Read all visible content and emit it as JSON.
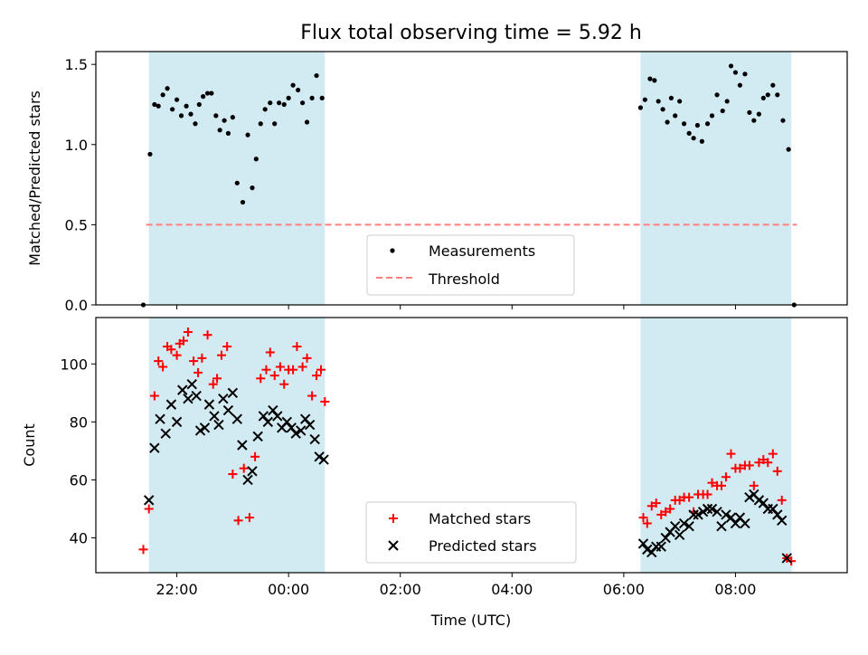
{
  "chart_data": {
    "type": "scatter",
    "title": "Flux total observing time = 5.92 h",
    "xlabel": "Time (UTC)",
    "x_unit": "hours UTC; values above 24 are times on the following day",
    "x_ticks": [
      "22:00",
      "00:00",
      "02:00",
      "04:00",
      "06:00",
      "08:00"
    ],
    "shaded_intervals": [
      [
        21.5,
        24.65
      ],
      [
        30.3,
        33.0
      ]
    ],
    "colors": {
      "shade": "#add8e6",
      "matched": "#ff0000",
      "predicted": "#000000",
      "threshold": "#ff7f7f",
      "measurements": "#000000"
    },
    "panels": [
      {
        "ylabel": "Matched/Predicted stars",
        "ylim": [
          0,
          1.58
        ],
        "yticks": [
          "0.0",
          "0.5",
          "1.0",
          "1.5"
        ],
        "legend_position": "lower center",
        "threshold": {
          "name": "Threshold",
          "value": 0.5,
          "x_range": [
            21.45,
            33.1
          ]
        },
        "measurements": {
          "name": "Measurements",
          "points": [
            [
              21.4,
              0.0
            ],
            [
              21.52,
              0.94
            ],
            [
              21.6,
              1.25
            ],
            [
              21.67,
              1.24
            ],
            [
              21.75,
              1.31
            ],
            [
              21.83,
              1.35
            ],
            [
              21.92,
              1.22
            ],
            [
              22.0,
              1.28
            ],
            [
              22.08,
              1.18
            ],
            [
              22.17,
              1.24
            ],
            [
              22.25,
              1.19
            ],
            [
              22.33,
              1.13
            ],
            [
              22.4,
              1.25
            ],
            [
              22.47,
              1.3
            ],
            [
              22.55,
              1.32
            ],
            [
              22.62,
              1.32
            ],
            [
              22.7,
              1.18
            ],
            [
              22.77,
              1.09
            ],
            [
              22.85,
              1.15
            ],
            [
              22.92,
              1.07
            ],
            [
              23.0,
              1.17
            ],
            [
              23.08,
              0.76
            ],
            [
              23.18,
              0.64
            ],
            [
              23.27,
              1.06
            ],
            [
              23.35,
              0.73
            ],
            [
              23.42,
              0.91
            ],
            [
              23.5,
              1.13
            ],
            [
              23.58,
              1.22
            ],
            [
              23.67,
              1.26
            ],
            [
              23.75,
              1.13
            ],
            [
              23.83,
              1.26
            ],
            [
              23.92,
              1.25
            ],
            [
              24.0,
              1.29
            ],
            [
              24.08,
              1.37
            ],
            [
              24.17,
              1.34
            ],
            [
              24.25,
              1.26
            ],
            [
              24.33,
              1.14
            ],
            [
              24.42,
              1.29
            ],
            [
              24.5,
              1.43
            ],
            [
              24.6,
              1.29
            ],
            [
              30.3,
              1.23
            ],
            [
              30.38,
              1.28
            ],
            [
              30.47,
              1.41
            ],
            [
              30.55,
              1.4
            ],
            [
              30.62,
              1.27
            ],
            [
              30.7,
              1.22
            ],
            [
              30.78,
              1.14
            ],
            [
              30.85,
              1.29
            ],
            [
              30.92,
              1.18
            ],
            [
              31.0,
              1.27
            ],
            [
              31.08,
              1.13
            ],
            [
              31.17,
              1.07
            ],
            [
              31.25,
              1.04
            ],
            [
              31.32,
              1.12
            ],
            [
              31.4,
              1.02
            ],
            [
              31.5,
              1.13
            ],
            [
              31.58,
              1.18
            ],
            [
              31.67,
              1.31
            ],
            [
              31.77,
              1.21
            ],
            [
              31.85,
              1.27
            ],
            [
              31.92,
              1.49
            ],
            [
              32.0,
              1.45
            ],
            [
              32.08,
              1.37
            ],
            [
              32.17,
              1.44
            ],
            [
              32.25,
              1.2
            ],
            [
              32.33,
              1.15
            ],
            [
              32.42,
              1.19
            ],
            [
              32.5,
              1.29
            ],
            [
              32.58,
              1.31
            ],
            [
              32.67,
              1.37
            ],
            [
              32.75,
              1.31
            ],
            [
              32.85,
              1.15
            ],
            [
              32.95,
              0.97
            ],
            [
              33.05,
              0.0
            ]
          ]
        }
      },
      {
        "ylabel": "Count",
        "ylim": [
          28,
          116
        ],
        "yticks": [
          "40",
          "60",
          "80",
          "100"
        ],
        "legend_position": "lower center",
        "matched": {
          "name": "Matched stars",
          "points": [
            [
              21.4,
              36
            ],
            [
              21.5,
              50
            ],
            [
              21.6,
              89
            ],
            [
              21.67,
              101
            ],
            [
              21.75,
              99
            ],
            [
              21.83,
              106
            ],
            [
              21.9,
              105
            ],
            [
              22.0,
              103
            ],
            [
              22.05,
              107
            ],
            [
              22.12,
              108
            ],
            [
              22.2,
              111
            ],
            [
              22.3,
              101
            ],
            [
              22.38,
              97
            ],
            [
              22.45,
              102
            ],
            [
              22.55,
              110
            ],
            [
              22.65,
              93
            ],
            [
              22.72,
              95
            ],
            [
              22.8,
              103
            ],
            [
              22.9,
              106
            ],
            [
              23.0,
              62
            ],
            [
              23.1,
              46
            ],
            [
              23.2,
              64
            ],
            [
              23.3,
              47
            ],
            [
              23.4,
              68
            ],
            [
              23.5,
              95
            ],
            [
              23.6,
              98
            ],
            [
              23.67,
              104
            ],
            [
              23.75,
              96
            ],
            [
              23.85,
              99
            ],
            [
              23.92,
              93
            ],
            [
              24.0,
              98
            ],
            [
              24.08,
              98
            ],
            [
              24.15,
              106
            ],
            [
              24.25,
              99
            ],
            [
              24.33,
              102
            ],
            [
              24.42,
              89
            ],
            [
              24.5,
              96
            ],
            [
              24.58,
              98
            ],
            [
              24.65,
              87
            ],
            [
              30.35,
              47
            ],
            [
              30.42,
              45
            ],
            [
              30.5,
              51
            ],
            [
              30.58,
              52
            ],
            [
              30.67,
              48
            ],
            [
              30.75,
              49
            ],
            [
              30.83,
              50
            ],
            [
              30.92,
              53
            ],
            [
              31.0,
              53
            ],
            [
              31.08,
              54
            ],
            [
              31.17,
              54
            ],
            [
              31.25,
              49
            ],
            [
              31.33,
              55
            ],
            [
              31.42,
              55
            ],
            [
              31.5,
              55
            ],
            [
              31.58,
              59
            ],
            [
              31.67,
              58
            ],
            [
              31.75,
              58
            ],
            [
              31.83,
              61
            ],
            [
              31.92,
              69
            ],
            [
              32.0,
              64
            ],
            [
              32.08,
              64
            ],
            [
              32.17,
              65
            ],
            [
              32.25,
              65
            ],
            [
              32.33,
              58
            ],
            [
              32.42,
              66
            ],
            [
              32.5,
              67
            ],
            [
              32.58,
              66
            ],
            [
              32.67,
              69
            ],
            [
              32.75,
              63
            ],
            [
              32.83,
              53
            ],
            [
              32.92,
              33
            ],
            [
              33.0,
              32
            ]
          ]
        },
        "predicted": {
          "name": "Predicted stars",
          "points": [
            [
              21.5,
              53
            ],
            [
              21.6,
              71
            ],
            [
              21.7,
              81
            ],
            [
              21.8,
              76
            ],
            [
              21.9,
              86
            ],
            [
              22.0,
              80
            ],
            [
              22.1,
              91
            ],
            [
              22.2,
              88
            ],
            [
              22.27,
              93
            ],
            [
              22.35,
              89
            ],
            [
              22.42,
              77
            ],
            [
              22.5,
              78
            ],
            [
              22.58,
              86
            ],
            [
              22.67,
              82
            ],
            [
              22.75,
              79
            ],
            [
              22.83,
              88
            ],
            [
              22.92,
              84
            ],
            [
              23.0,
              90
            ],
            [
              23.08,
              81
            ],
            [
              23.17,
              72
            ],
            [
              23.27,
              60
            ],
            [
              23.35,
              63
            ],
            [
              23.45,
              75
            ],
            [
              23.55,
              82
            ],
            [
              23.63,
              80
            ],
            [
              23.72,
              84
            ],
            [
              23.8,
              82
            ],
            [
              23.88,
              78
            ],
            [
              23.97,
              80
            ],
            [
              24.05,
              78
            ],
            [
              24.13,
              76
            ],
            [
              24.22,
              77
            ],
            [
              24.3,
              81
            ],
            [
              24.38,
              79
            ],
            [
              24.47,
              74
            ],
            [
              24.55,
              68
            ],
            [
              24.63,
              67
            ],
            [
              30.35,
              38
            ],
            [
              30.42,
              36
            ],
            [
              30.5,
              35
            ],
            [
              30.58,
              37
            ],
            [
              30.67,
              37
            ],
            [
              30.75,
              40
            ],
            [
              30.83,
              42
            ],
            [
              30.92,
              44
            ],
            [
              31.0,
              41
            ],
            [
              31.08,
              45
            ],
            [
              31.17,
              44
            ],
            [
              31.25,
              48
            ],
            [
              31.33,
              48
            ],
            [
              31.42,
              49
            ],
            [
              31.5,
              50
            ],
            [
              31.58,
              50
            ],
            [
              31.67,
              49
            ],
            [
              31.75,
              44
            ],
            [
              31.83,
              48
            ],
            [
              31.92,
              47
            ],
            [
              32.0,
              45
            ],
            [
              32.08,
              47
            ],
            [
              32.17,
              45
            ],
            [
              32.25,
              54
            ],
            [
              32.33,
              55
            ],
            [
              32.42,
              53
            ],
            [
              32.5,
              52
            ],
            [
              32.58,
              50
            ],
            [
              32.67,
              50
            ],
            [
              32.75,
              48
            ],
            [
              32.83,
              46
            ],
            [
              32.92,
              33
            ]
          ]
        }
      }
    ]
  }
}
